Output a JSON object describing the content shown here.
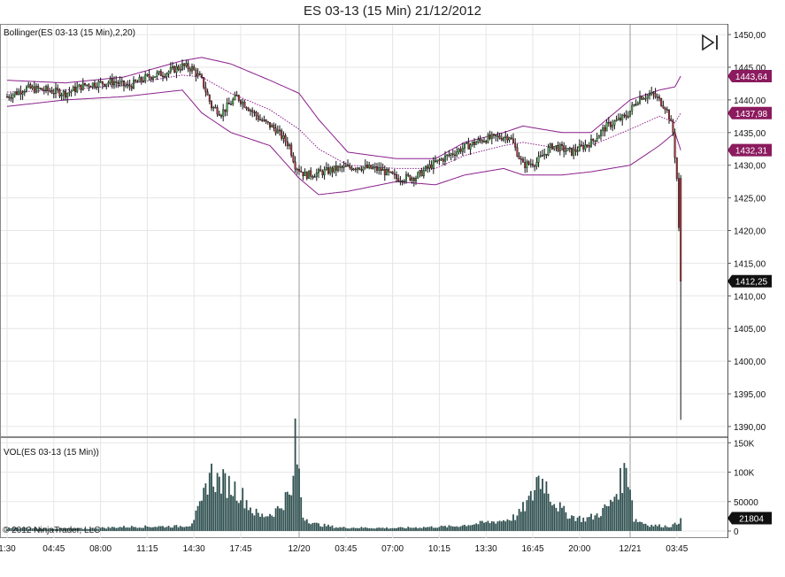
{
  "header": {
    "title": "ES 03-13 (15 Min)  21/12/2012"
  },
  "price_panel": {
    "indicator_label": "Bollinger(ES 03-13 (15 Min),2,20)"
  },
  "volume_panel": {
    "indicator_label": "VOL(ES 03-13 (15 Min))"
  },
  "copyright": "© 2012 NinjaTrader, LLC",
  "icons": {
    "play": "play-to-end-icon"
  },
  "colors": {
    "up_candle": "#4caf50",
    "down_candle": "#a8323a",
    "bollinger": "#8b1f8b",
    "volume": "#2f4f4f",
    "badge_bollinger": "#8b1a5e",
    "badge_price": "#111111"
  },
  "chart_data": [
    {
      "type": "candlestick",
      "title": "ES 03-13 (15 Min)  21/12/2012",
      "y_ticks": [
        "1450,00",
        "1445,00",
        "1440,00",
        "1435,00",
        "1430,00",
        "1425,00",
        "1420,00",
        "1415,00",
        "1410,00",
        "1405,00",
        "1400,00",
        "1395,00",
        "1390,00"
      ],
      "ylim": [
        1388.5,
        1451.5
      ],
      "x_ticks": [
        "1:30",
        "04:45",
        "08:00",
        "11:15",
        "14:30",
        "17:45",
        "12/20",
        "03:45",
        "07:00",
        "10:15",
        "13:30",
        "16:45",
        "20:00",
        "12/21",
        "03:45"
      ],
      "price_badges": [
        {
          "label": "1443,64",
          "value": 1443.64,
          "kind": "bollinger"
        },
        {
          "label": "1437,98",
          "value": 1437.98,
          "kind": "bollinger"
        },
        {
          "label": "1432,31",
          "value": 1432.31,
          "kind": "bollinger"
        },
        {
          "label": "1412,25",
          "value": 1412.25,
          "kind": "last_price"
        }
      ],
      "close_anchors": [
        [
          0,
          1440.5
        ],
        [
          10,
          1441.8
        ],
        [
          20,
          1441.5
        ],
        [
          30,
          1441.0
        ],
        [
          40,
          1442.3
        ],
        [
          55,
          1442.8
        ],
        [
          62,
          1442.0
        ],
        [
          72,
          1443.5
        ],
        [
          82,
          1444.2
        ],
        [
          90,
          1445.2
        ],
        [
          95,
          1444.8
        ],
        [
          100,
          1443.0
        ],
        [
          105,
          1439.0
        ],
        [
          110,
          1438.0
        ],
        [
          118,
          1440.5
        ],
        [
          125,
          1438.5
        ],
        [
          130,
          1437.0
        ],
        [
          138,
          1435.5
        ],
        [
          145,
          1433.0
        ],
        [
          148,
          1430.0
        ],
        [
          153,
          1428.5
        ],
        [
          160,
          1428.8
        ],
        [
          170,
          1429.5
        ],
        [
          180,
          1429.8
        ],
        [
          192,
          1429.3
        ],
        [
          200,
          1428.0
        ],
        [
          210,
          1428.2
        ],
        [
          218,
          1430.0
        ],
        [
          225,
          1431.2
        ],
        [
          235,
          1432.8
        ],
        [
          245,
          1434.0
        ],
        [
          258,
          1434.5
        ],
        [
          265,
          1430.0
        ],
        [
          272,
          1430.5
        ],
        [
          280,
          1433.0
        ],
        [
          290,
          1432.0
        ],
        [
          300,
          1433.5
        ],
        [
          308,
          1436.0
        ],
        [
          318,
          1437.5
        ],
        [
          325,
          1440.5
        ],
        [
          332,
          1440.8
        ],
        [
          338,
          1439.0
        ],
        [
          340,
          1437.5
        ],
        [
          342,
          1435.0
        ],
        [
          344,
          1428.0
        ],
        [
          346,
          1412.25
        ]
      ],
      "bollinger_anchors": [
        {
          "x": 0,
          "up": 1443.0,
          "mid": 1441.2,
          "lo": 1439.0
        },
        {
          "x": 30,
          "up": 1442.6,
          "mid": 1441.5,
          "lo": 1440.0
        },
        {
          "x": 60,
          "up": 1443.5,
          "mid": 1442.3,
          "lo": 1440.5
        },
        {
          "x": 90,
          "up": 1446.0,
          "mid": 1443.8,
          "lo": 1441.5
        },
        {
          "x": 100,
          "up": 1446.5,
          "mid": 1443.5,
          "lo": 1438.0
        },
        {
          "x": 115,
          "up": 1445.5,
          "mid": 1441.0,
          "lo": 1435.0
        },
        {
          "x": 135,
          "up": 1443.0,
          "mid": 1438.5,
          "lo": 1433.0
        },
        {
          "x": 150,
          "up": 1441.0,
          "mid": 1435.5,
          "lo": 1428.0
        },
        {
          "x": 160,
          "up": 1437.0,
          "mid": 1432.5,
          "lo": 1425.5
        },
        {
          "x": 175,
          "up": 1432.0,
          "mid": 1430.0,
          "lo": 1426.0
        },
        {
          "x": 200,
          "up": 1431.0,
          "mid": 1429.5,
          "lo": 1427.5
        },
        {
          "x": 220,
          "up": 1431.0,
          "mid": 1429.5,
          "lo": 1427.0
        },
        {
          "x": 235,
          "up": 1433.5,
          "mid": 1431.5,
          "lo": 1428.5
        },
        {
          "x": 255,
          "up": 1435.0,
          "mid": 1433.0,
          "lo": 1429.5
        },
        {
          "x": 265,
          "up": 1436.0,
          "mid": 1433.5,
          "lo": 1428.5
        },
        {
          "x": 285,
          "up": 1435.0,
          "mid": 1432.5,
          "lo": 1428.5
        },
        {
          "x": 300,
          "up": 1435.0,
          "mid": 1433.0,
          "lo": 1429.0
        },
        {
          "x": 320,
          "up": 1440.0,
          "mid": 1435.5,
          "lo": 1430.0
        },
        {
          "x": 335,
          "up": 1441.5,
          "mid": 1437.5,
          "lo": 1433.0
        },
        {
          "x": 343,
          "up": 1442.0,
          "mid": 1436.5,
          "lo": 1435.0
        },
        {
          "x": 346,
          "up": 1443.64,
          "mid": 1437.98,
          "lo": 1432.31
        }
      ],
      "x_tick_bar_index": [
        0,
        24,
        48,
        72,
        96,
        120,
        150,
        174,
        198,
        222,
        246,
        270,
        294,
        320,
        344
      ],
      "vertical_markers_bar_index": [
        150,
        320
      ]
    },
    {
      "type": "bar",
      "title": "VOL(ES 03-13 (15 Min))",
      "y_ticks": [
        "150K",
        "100K",
        "50000",
        "0"
      ],
      "ylim": [
        0,
        158000
      ],
      "last_volume_badge": {
        "label": "21804",
        "value": 21804
      },
      "volume_anchors": [
        [
          0,
          5000
        ],
        [
          40,
          4000
        ],
        [
          60,
          7000
        ],
        [
          88,
          8000
        ],
        [
          94,
          10000
        ],
        [
          100,
          45000
        ],
        [
          104,
          100000
        ],
        [
          108,
          85000
        ],
        [
          113,
          80000
        ],
        [
          118,
          70000
        ],
        [
          122,
          55000
        ],
        [
          126,
          35000
        ],
        [
          130,
          25000
        ],
        [
          136,
          30000
        ],
        [
          140,
          40000
        ],
        [
          144,
          60000
        ],
        [
          146,
          55000
        ],
        [
          148,
          150000
        ],
        [
          150,
          95000
        ],
        [
          152,
          25000
        ],
        [
          158,
          12000
        ],
        [
          170,
          6000
        ],
        [
          200,
          5000
        ],
        [
          230,
          8000
        ],
        [
          255,
          18000
        ],
        [
          262,
          25000
        ],
        [
          270,
          60000
        ],
        [
          272,
          90000
        ],
        [
          276,
          85000
        ],
        [
          280,
          55000
        ],
        [
          285,
          35000
        ],
        [
          290,
          25000
        ],
        [
          296,
          20000
        ],
        [
          302,
          25000
        ],
        [
          310,
          45000
        ],
        [
          316,
          90000
        ],
        [
          318,
          105000
        ],
        [
          320,
          85000
        ],
        [
          322,
          20000
        ],
        [
          330,
          10000
        ],
        [
          340,
          8000
        ],
        [
          344,
          12000
        ],
        [
          346,
          21804
        ]
      ]
    }
  ]
}
